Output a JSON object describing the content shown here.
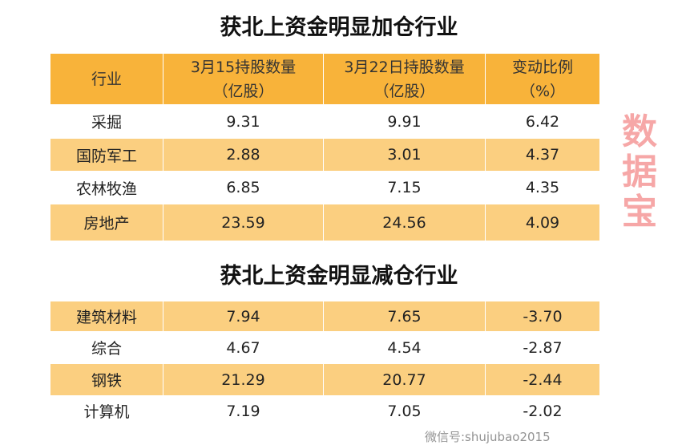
{
  "increase": {
    "title": "获北上资金明显加仓行业",
    "headers": [
      "行业",
      "3月15持股数量（亿股）",
      "3月22日持股数量（亿股）",
      "变动比例（%）"
    ],
    "header_lines": [
      [
        "行业",
        ""
      ],
      [
        "3月15持股数量",
        "（亿股）"
      ],
      [
        "3月22日持股数量",
        "（亿股）"
      ],
      [
        "变动比例",
        "（%）"
      ]
    ],
    "rows": [
      [
        "采掘",
        "9.31",
        "9.91",
        "6.42"
      ],
      [
        "国防军工",
        "2.88",
        "3.01",
        "4.37"
      ],
      [
        "农林牧渔",
        "6.85",
        "7.15",
        "4.35"
      ],
      [
        "房地产",
        "23.59",
        "24.56",
        "4.09"
      ]
    ]
  },
  "decrease": {
    "title": "获北上资金明显减仓行业",
    "rows": [
      [
        "建筑材料",
        "7.94",
        "7.65",
        "-3.70"
      ],
      [
        "综合",
        "4.67",
        "4.54",
        "-2.87"
      ],
      [
        "钢铁",
        "21.29",
        "20.77",
        "-2.44"
      ],
      [
        "计算机",
        "7.19",
        "7.05",
        "-2.02"
      ]
    ]
  },
  "watermark": "数据宝",
  "wechat_watermark": "微信号:shujubao2015",
  "colors": {
    "header": "#F8B33A",
    "alt_row": "#FBCF80"
  }
}
